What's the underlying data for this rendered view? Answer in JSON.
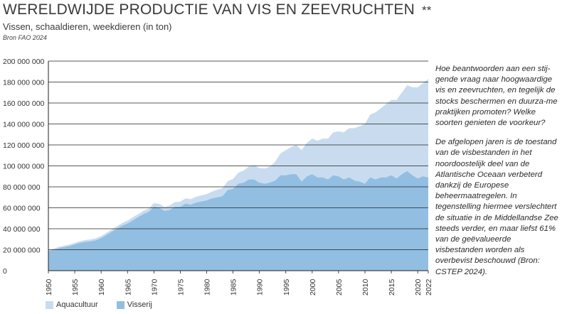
{
  "header": {
    "title": "WERELDWIJDE PRODUCTIE VAN VIS EN ZEEVRUCHTEN",
    "stars": "**",
    "subtitle": "Vissen, schaaldieren, weekdieren (in ton)",
    "source": "Bron FAO 2024"
  },
  "side_text": {
    "paragraph1": "Hoe beantwoorden aan een stij-gende vraag naar hoogwaardige vis en zeevruchten, en tegelijk de stocks beschermen en duurza-me praktijken promoten? Welke soorten genieten de voorkeur?",
    "paragraph2": "De afgelopen jaren is de toestand van de visbestanden in het noordoostelijk deel van de Atlantische Oceaan verbeterd dankzij de Europese beheermaatregelen. In tegenstelling hiermee verslechtert de situatie in de Middellandse Zee steeds verder, en maar liefst 61% van de geëvalueerde visbestanden worden als overbevist beschouwd (Bron: CSTEP 2024)."
  },
  "colors": {
    "aquacultuur": "#c9dcef",
    "visserij": "#92bfe1",
    "gridline": "#222222",
    "axis": "#222222"
  },
  "chart_data": {
    "type": "area",
    "stacked": true,
    "title": "WERELDWIJDE PRODUCTIE VAN VIS EN ZEEVRUCHTEN",
    "subtitle": "Vissen, schaaldieren, weekdieren (in ton)",
    "xlabel": "",
    "ylabel": "",
    "ylim": [
      0,
      200000000
    ],
    "xlim": [
      1950,
      2022
    ],
    "grid": true,
    "legend_position": "bottom-left",
    "y_ticks": [
      0,
      20000000,
      40000000,
      60000000,
      80000000,
      100000000,
      120000000,
      140000000,
      160000000,
      180000000,
      200000000
    ],
    "y_tick_labels": [
      "0",
      "20 000 000",
      "40 000 000",
      "60 000 000",
      "80 000 000",
      "100 000 000",
      "120 000 000",
      "140 000 000",
      "160 000 000",
      "180 000 000",
      "200 000 000"
    ],
    "x_ticks": [
      1950,
      1955,
      1960,
      1965,
      1970,
      1975,
      1980,
      1985,
      1990,
      1995,
      2000,
      2005,
      2010,
      2015,
      2020,
      2022
    ],
    "x": [
      1950,
      1951,
      1952,
      1953,
      1954,
      1955,
      1956,
      1957,
      1958,
      1959,
      1960,
      1961,
      1962,
      1963,
      1964,
      1965,
      1966,
      1967,
      1968,
      1969,
      1970,
      1971,
      1972,
      1973,
      1974,
      1975,
      1976,
      1977,
      1978,
      1979,
      1980,
      1981,
      1982,
      1983,
      1984,
      1985,
      1986,
      1987,
      1988,
      1989,
      1990,
      1991,
      1992,
      1993,
      1994,
      1995,
      1996,
      1997,
      1998,
      1999,
      2000,
      2001,
      2002,
      2003,
      2004,
      2005,
      2006,
      2007,
      2008,
      2009,
      2010,
      2011,
      2012,
      2013,
      2014,
      2015,
      2016,
      2017,
      2018,
      2019,
      2020,
      2021,
      2022
    ],
    "series": [
      {
        "name": "Visserij",
        "values": [
          18500000,
          20000000,
          21500000,
          22500000,
          23500000,
          25000000,
          26500000,
          27500000,
          28000000,
          29000000,
          31000000,
          34000000,
          37000000,
          40000000,
          43000000,
          45000000,
          48000000,
          51000000,
          54000000,
          56000000,
          61000000,
          60000000,
          57000000,
          58000000,
          61000000,
          61000000,
          64000000,
          63000000,
          65000000,
          66000000,
          67000000,
          69000000,
          70000000,
          71000000,
          77000000,
          78000000,
          83000000,
          84000000,
          87000000,
          87000000,
          84000000,
          83000000,
          84000000,
          86000000,
          91000000,
          91000000,
          92000000,
          92000000,
          85000000,
          90000000,
          92000000,
          89000000,
          89000000,
          87000000,
          91000000,
          90000000,
          87000000,
          89000000,
          86000000,
          85000000,
          83000000,
          89000000,
          87000000,
          89000000,
          89000000,
          91000000,
          88000000,
          92000000,
          95000000,
          91000000,
          88000000,
          90000000,
          89000000
        ]
      },
      {
        "name": "Aquacultuur",
        "values": [
          1000000,
          1100000,
          1200000,
          1300000,
          1400000,
          1500000,
          1600000,
          1700000,
          1800000,
          1900000,
          2000000,
          2100000,
          2200000,
          2400000,
          2500000,
          2700000,
          2900000,
          3000000,
          3100000,
          3200000,
          3500000,
          3700000,
          3900000,
          4200000,
          4500000,
          4800000,
          5000000,
          5200000,
          5500000,
          5900000,
          6000000,
          6500000,
          7200000,
          7800000,
          8500000,
          9500000,
          10500000,
          11500000,
          12500000,
          13500000,
          14000000,
          14500000,
          15500000,
          18000000,
          21000000,
          24000000,
          26000000,
          28000000,
          30000000,
          32000000,
          34000000,
          35000000,
          37000000,
          39000000,
          41000000,
          43000000,
          45000000,
          47000000,
          50000000,
          53000000,
          57000000,
          60000000,
          64000000,
          66000000,
          70000000,
          72000000,
          75000000,
          78000000,
          82000000,
          84000000,
          87000000,
          89000000,
          94000000
        ]
      }
    ]
  },
  "legend": {
    "items": [
      {
        "label": "Aquacultuur"
      },
      {
        "label": "Visserij"
      }
    ]
  }
}
